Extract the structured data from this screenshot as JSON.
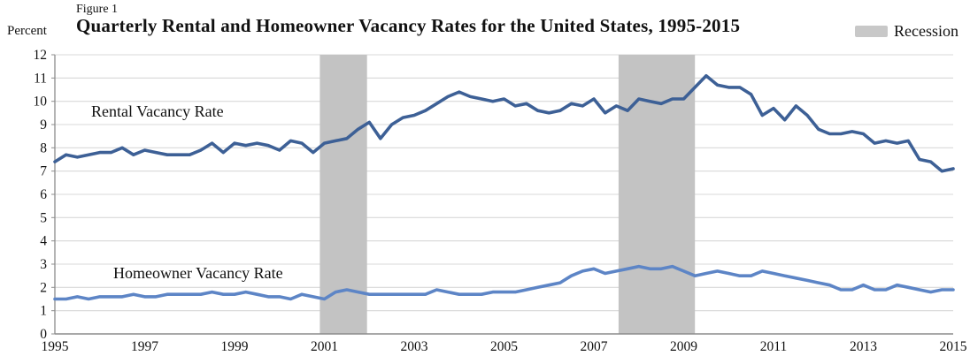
{
  "header": {
    "figure_label": "Figure 1",
    "title": "Quarterly Rental and Homeowner Vacancy Rates for the United States, 1995-2015",
    "y_axis_unit": "Percent"
  },
  "legend": {
    "label": "Recession",
    "swatch_color": "#c8c8c8"
  },
  "annotations": {
    "rental_label": "Rental Vacancy Rate",
    "homeowner_label": "Homeowner Vacancy Rate"
  },
  "chart_data": {
    "type": "line",
    "title": "Quarterly Rental and Homeowner Vacancy Rates for the United States, 1995-2015",
    "ylabel": "Percent",
    "xlabel": "",
    "x_start_year": 1995,
    "x_end_year": 2015,
    "x_frequency": "quarterly",
    "x_range_note": "1995 Q1 through 2015 Q1, one value per quarter",
    "ylim": [
      0,
      12
    ],
    "y_ticks": [
      0,
      1,
      2,
      3,
      4,
      5,
      6,
      7,
      8,
      9,
      10,
      11,
      12
    ],
    "x_tick_years": [
      1995,
      1997,
      1999,
      2001,
      2003,
      2005,
      2007,
      2009,
      2011,
      2013,
      2015
    ],
    "grid": "horizontal",
    "legend_position": "top-right",
    "recession_bands": [
      {
        "start_year": 2000.9,
        "end_year": 2001.95
      },
      {
        "start_year": 2007.55,
        "end_year": 2009.25
      }
    ],
    "colors": {
      "band": "#c3c3c3",
      "grid": "#d8d8d8",
      "axis": "#8c8c8c",
      "tick_text": "#111111"
    },
    "series": [
      {
        "name": "Rental Vacancy Rate",
        "color": "#3d6096",
        "values": [
          7.4,
          7.7,
          7.6,
          7.7,
          7.8,
          7.8,
          8.0,
          7.7,
          7.9,
          7.8,
          7.7,
          7.7,
          7.7,
          7.9,
          8.2,
          7.8,
          8.2,
          8.1,
          8.2,
          8.1,
          7.9,
          8.3,
          8.2,
          7.8,
          8.2,
          8.3,
          8.4,
          8.8,
          9.1,
          8.4,
          9.0,
          9.3,
          9.4,
          9.6,
          9.9,
          10.2,
          10.4,
          10.2,
          10.1,
          10.0,
          10.1,
          9.8,
          9.9,
          9.6,
          9.5,
          9.6,
          9.9,
          9.8,
          10.1,
          9.5,
          9.8,
          9.6,
          10.1,
          10.0,
          9.9,
          10.1,
          10.1,
          10.6,
          11.1,
          10.7,
          10.6,
          10.6,
          10.3,
          9.4,
          9.7,
          9.2,
          9.8,
          9.4,
          8.8,
          8.6,
          8.6,
          8.7,
          8.6,
          8.2,
          8.3,
          8.2,
          8.3,
          7.5,
          7.4,
          7.0,
          7.1
        ]
      },
      {
        "name": "Homeowner Vacancy Rate",
        "color": "#5d85c6",
        "values": [
          1.5,
          1.5,
          1.6,
          1.5,
          1.6,
          1.6,
          1.6,
          1.7,
          1.6,
          1.6,
          1.7,
          1.7,
          1.7,
          1.7,
          1.8,
          1.7,
          1.7,
          1.8,
          1.7,
          1.6,
          1.6,
          1.5,
          1.7,
          1.6,
          1.5,
          1.8,
          1.9,
          1.8,
          1.7,
          1.7,
          1.7,
          1.7,
          1.7,
          1.7,
          1.9,
          1.8,
          1.7,
          1.7,
          1.7,
          1.8,
          1.8,
          1.8,
          1.9,
          2.0,
          2.1,
          2.2,
          2.5,
          2.7,
          2.8,
          2.6,
          2.7,
          2.8,
          2.9,
          2.8,
          2.8,
          2.9,
          2.7,
          2.5,
          2.6,
          2.7,
          2.6,
          2.5,
          2.5,
          2.7,
          2.6,
          2.5,
          2.4,
          2.3,
          2.2,
          2.1,
          1.9,
          1.9,
          2.1,
          1.9,
          1.9,
          2.1,
          2.0,
          1.9,
          1.8,
          1.9,
          1.9
        ]
      }
    ]
  }
}
